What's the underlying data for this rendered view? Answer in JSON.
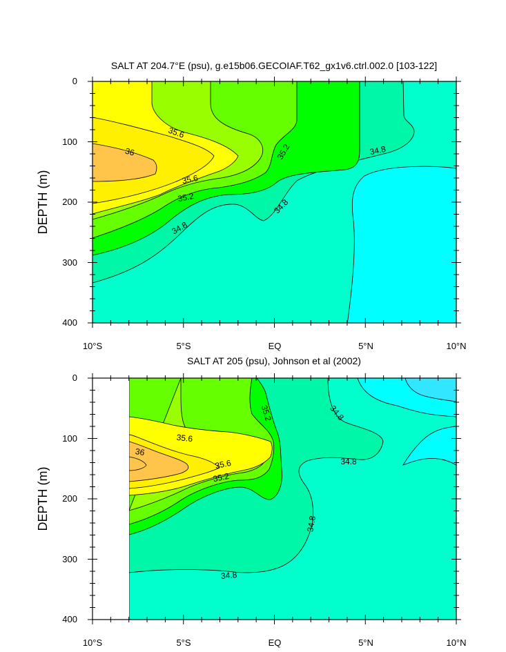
{
  "chart_data": [
    {
      "type": "filled-contour",
      "title": "SALT AT 204.7°E (psu), g.e15b06.GECOIAF.T62_gx1v6.ctrl.002.0 [103-122]",
      "ylabel": "DEPTH (m)",
      "xlabel": "",
      "xlim": [
        -10,
        10
      ],
      "ylim": [
        400,
        0
      ],
      "x_ticks": [
        -10,
        -5,
        0,
        5,
        10
      ],
      "x_tick_labels": [
        "10°S",
        "5°S",
        "EQ",
        "5°N",
        "10°N"
      ],
      "y_ticks": [
        0,
        100,
        200,
        300,
        400
      ],
      "y_tick_labels": [
        "0",
        "100",
        "200",
        "300",
        "400"
      ],
      "data_x_range": [
        -10,
        10
      ],
      "contour_levels": [
        34.6,
        34.8,
        35.0,
        35.2,
        35.4,
        35.6,
        35.8,
        36.0
      ],
      "contour_labels": [
        {
          "text": "35.6",
          "x": -5.5,
          "y": 88
        },
        {
          "text": "36",
          "x": -8.1,
          "y": 120
        },
        {
          "text": "35.6",
          "x": -4.7,
          "y": 164
        },
        {
          "text": "35.2",
          "x": -5.0,
          "y": 193
        },
        {
          "text": "34.8",
          "x": -5.1,
          "y": 248
        },
        {
          "text": "35.2",
          "x": 0.4,
          "y": 120
        },
        {
          "text": "34.8",
          "x": 0.3,
          "y": 208
        },
        {
          "text": "34.8",
          "x": 5.7,
          "y": 114
        }
      ]
    },
    {
      "type": "filled-contour",
      "title": "SALT AT 205 (psu), Johnson et al (2002)",
      "ylabel": "DEPTH (m)",
      "xlabel": "",
      "xlim": [
        -10,
        10
      ],
      "ylim": [
        400,
        0
      ],
      "x_ticks": [
        -10,
        -5,
        0,
        5,
        10
      ],
      "x_tick_labels": [
        "10°S",
        "5°S",
        "EQ",
        "5°N",
        "10°N"
      ],
      "y_ticks": [
        0,
        100,
        200,
        300,
        400
      ],
      "y_tick_labels": [
        "0",
        "100",
        "200",
        "300",
        "400"
      ],
      "data_x_range": [
        -8,
        10
      ],
      "contour_levels": [
        34.6,
        34.8,
        35.0,
        35.2,
        35.4,
        35.6,
        35.8,
        36.0
      ],
      "contour_labels": [
        {
          "text": "35.6",
          "x": -5.0,
          "y": 100
        },
        {
          "text": "36",
          "x": -7.5,
          "y": 124
        },
        {
          "text": "35.6",
          "x": -2.8,
          "y": 143
        },
        {
          "text": "35.2",
          "x": -3.0,
          "y": 165
        },
        {
          "text": "35.2",
          "x": -0.6,
          "y": 60
        },
        {
          "text": "34.8",
          "x": 3.3,
          "y": 60
        },
        {
          "text": "34.8",
          "x": 4.0,
          "y": 140
        },
        {
          "text": "34.8",
          "x": 2.2,
          "y": 240
        },
        {
          "text": "34.8",
          "x": -2.6,
          "y": 325
        }
      ]
    }
  ],
  "colors": {
    "lt_34_6": "#00ffff",
    "s34_6_34_8": "#00ffcc",
    "s34_8_35_0": "#00f7a8",
    "s35_0_35_2": "#00ff00",
    "s35_2_35_4": "#66ff00",
    "s35_4_35_6": "#99ff00",
    "s35_6_35_8": "#ffff00",
    "s35_8_36_0": "#fff000",
    "gt_36_0": "#ffc44a"
  }
}
